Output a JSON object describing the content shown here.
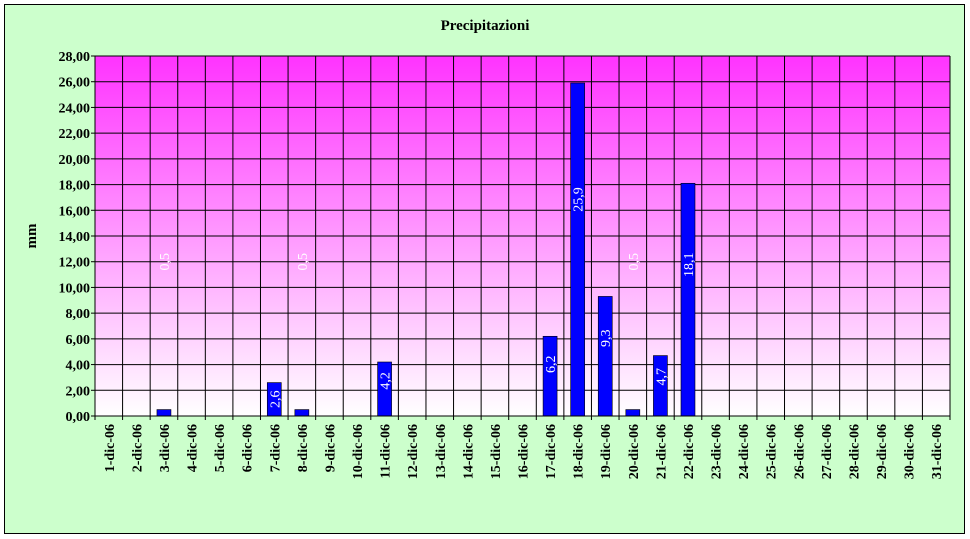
{
  "chart_data": {
    "type": "bar",
    "title": "Precipitazioni",
    "xlabel": "",
    "ylabel": "mm",
    "ylim": [
      0,
      28
    ],
    "ytick_step": 2,
    "ytick_labels": [
      "0,00",
      "2,00",
      "4,00",
      "6,00",
      "8,00",
      "10,00",
      "12,00",
      "14,00",
      "16,00",
      "18,00",
      "20,00",
      "22,00",
      "24,00",
      "26,00",
      "28,00"
    ],
    "categories": [
      "1-dic-06",
      "2-dic-06",
      "3-dic-06",
      "4-dic-06",
      "5-dic-06",
      "6-dic-06",
      "7-dic-06",
      "8-dic-06",
      "9-dic-06",
      "10-dic-06",
      "11-dic-06",
      "12-dic-06",
      "13-dic-06",
      "14-dic-06",
      "15-dic-06",
      "16-dic-06",
      "17-dic-06",
      "18-dic-06",
      "19-dic-06",
      "20-dic-06",
      "21-dic-06",
      "22-dic-06",
      "23-dic-06",
      "24-dic-06",
      "25-dic-06",
      "26-dic-06",
      "27-dic-06",
      "28-dic-06",
      "29-dic-06",
      "30-dic-06",
      "31-dic-06"
    ],
    "values": [
      0,
      0,
      0.5,
      0,
      0,
      0,
      2.6,
      0.5,
      0,
      0,
      4.2,
      0,
      0,
      0,
      0,
      0,
      6.2,
      25.9,
      9.3,
      0.5,
      4.7,
      18.1,
      0,
      0,
      0,
      0,
      0,
      0,
      0,
      0,
      0
    ],
    "data_labels": [
      "",
      "",
      "0,5",
      "",
      "",
      "",
      "2,6",
      "0,5",
      "",
      "",
      "4,2",
      "",
      "",
      "",
      "",
      "",
      "6,2",
      "25,9",
      "9,3",
      "0,5",
      "4,7",
      "18,1",
      "",
      "",
      "",
      "",
      "",
      "",
      "",
      "",
      ""
    ],
    "grid": true,
    "legend": "none",
    "colors": {
      "bar": "#0000ff",
      "plot_top": "#ff33ff",
      "plot_bottom": "#ffffff",
      "chart_bg": "#ccffcc",
      "label": "#ffffff"
    }
  }
}
